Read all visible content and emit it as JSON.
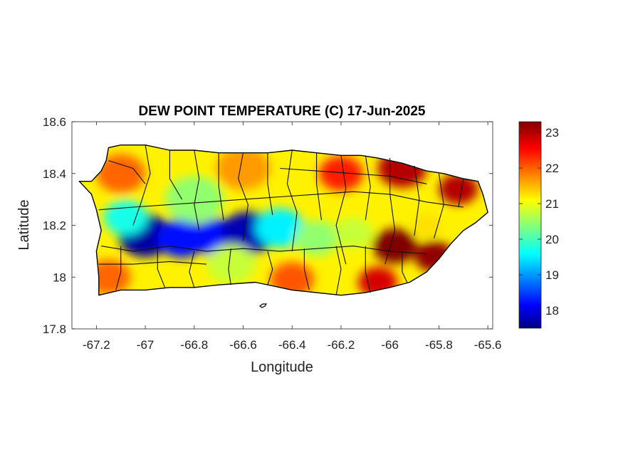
{
  "figure": {
    "title": "DEW POINT TEMPERATURE (C) 17-Jun-2025",
    "xlabel": "Longitude",
    "ylabel": "Latitude"
  },
  "chart_data": {
    "type": "heatmap",
    "title": "DEW POINT TEMPERATURE (C) 17-Jun-2025",
    "xlabel": "Longitude",
    "ylabel": "Latitude",
    "xlim": [
      -67.3,
      -65.58
    ],
    "ylim": [
      17.8,
      18.6
    ],
    "xticks": [
      -67.2,
      -67,
      -66.8,
      -66.6,
      -66.4,
      -66.2,
      -66,
      -65.8,
      -65.6
    ],
    "xtick_labels": [
      "-67.2",
      "-67",
      "-66.8",
      "-66.6",
      "-66.4",
      "-66.2",
      "-66",
      "-65.8",
      "-65.6"
    ],
    "yticks": [
      17.8,
      18,
      18.2,
      18.4,
      18.6
    ],
    "ytick_labels": [
      "17.8",
      "18",
      "18.2",
      "18.4",
      "18.6"
    ],
    "colorbar": {
      "range": [
        17.5,
        23.3
      ],
      "ticks": [
        18,
        19,
        20,
        21,
        22,
        23
      ],
      "tick_labels": [
        "18",
        "19",
        "20",
        "21",
        "22",
        "23"
      ],
      "colormap": "jet"
    },
    "grid": false,
    "island_outline": [
      [
        -67.27,
        18.37
      ],
      [
        -67.22,
        18.37
      ],
      [
        -67.18,
        18.41
      ],
      [
        -67.16,
        18.45
      ],
      [
        -67.15,
        18.5
      ],
      [
        -67.1,
        18.51
      ],
      [
        -67.0,
        18.51
      ],
      [
        -66.9,
        18.49
      ],
      [
        -66.8,
        18.49
      ],
      [
        -66.7,
        18.48
      ],
      [
        -66.6,
        18.48
      ],
      [
        -66.5,
        18.48
      ],
      [
        -66.4,
        18.49
      ],
      [
        -66.3,
        18.48
      ],
      [
        -66.2,
        18.47
      ],
      [
        -66.12,
        18.47
      ],
      [
        -66.05,
        18.46
      ],
      [
        -65.95,
        18.44
      ],
      [
        -65.85,
        18.41
      ],
      [
        -65.78,
        18.4
      ],
      [
        -65.7,
        18.38
      ],
      [
        -65.64,
        18.37
      ],
      [
        -65.62,
        18.32
      ],
      [
        -65.6,
        18.25
      ],
      [
        -65.65,
        18.21
      ],
      [
        -65.7,
        18.18
      ],
      [
        -65.75,
        18.13
      ],
      [
        -65.8,
        18.07
      ],
      [
        -65.85,
        18.02
      ],
      [
        -65.92,
        17.98
      ],
      [
        -66.0,
        17.96
      ],
      [
        -66.1,
        17.94
      ],
      [
        -66.2,
        17.93
      ],
      [
        -66.3,
        17.94
      ],
      [
        -66.4,
        17.95
      ],
      [
        -66.55,
        17.98
      ],
      [
        -66.7,
        17.97
      ],
      [
        -66.8,
        17.96
      ],
      [
        -66.9,
        17.96
      ],
      [
        -67.0,
        17.95
      ],
      [
        -67.1,
        17.95
      ],
      [
        -67.19,
        17.93
      ],
      [
        -67.19,
        18.0
      ],
      [
        -67.2,
        18.1
      ],
      [
        -67.18,
        18.18
      ],
      [
        -67.2,
        18.26
      ],
      [
        -67.22,
        18.32
      ],
      [
        -67.27,
        18.37
      ]
    ],
    "dew_point_field": [
      {
        "lon": -67.0,
        "lat": 18.16,
        "value": 17.7,
        "radius_deg": 0.11
      },
      {
        "lon": -66.85,
        "lat": 18.15,
        "value": 18.3,
        "radius_deg": 0.1
      },
      {
        "lon": -66.7,
        "lat": 18.15,
        "value": 18.3,
        "radius_deg": 0.1
      },
      {
        "lon": -66.58,
        "lat": 18.17,
        "value": 17.8,
        "radius_deg": 0.11
      },
      {
        "lon": -66.45,
        "lat": 18.19,
        "value": 19.6,
        "radius_deg": 0.1
      },
      {
        "lon": -67.08,
        "lat": 18.23,
        "value": 19.8,
        "radius_deg": 0.09
      },
      {
        "lon": -66.8,
        "lat": 18.3,
        "value": 20.5,
        "radius_deg": 0.12
      },
      {
        "lon": -66.65,
        "lat": 18.05,
        "value": 20.8,
        "radius_deg": 0.1
      },
      {
        "lon": -66.3,
        "lat": 18.15,
        "value": 20.5,
        "radius_deg": 0.09
      },
      {
        "lon": -66.15,
        "lat": 18.17,
        "value": 20.8,
        "radius_deg": 0.08
      },
      {
        "lon": -66.6,
        "lat": 18.42,
        "value": 21.7,
        "radius_deg": 0.11
      },
      {
        "lon": -67.1,
        "lat": 18.4,
        "value": 22.0,
        "radius_deg": 0.1
      },
      {
        "lon": -67.15,
        "lat": 18.0,
        "value": 22.0,
        "radius_deg": 0.09
      },
      {
        "lon": -66.4,
        "lat": 17.99,
        "value": 22.1,
        "radius_deg": 0.09
      },
      {
        "lon": -66.2,
        "lat": 18.4,
        "value": 22.4,
        "radius_deg": 0.09
      },
      {
        "lon": -65.95,
        "lat": 18.42,
        "value": 23.0,
        "radius_deg": 0.1
      },
      {
        "lon": -65.72,
        "lat": 18.34,
        "value": 23.0,
        "radius_deg": 0.08
      },
      {
        "lon": -65.85,
        "lat": 18.2,
        "value": 21.3,
        "radius_deg": 0.06
      },
      {
        "lon": -65.98,
        "lat": 18.12,
        "value": 23.3,
        "radius_deg": 0.09
      },
      {
        "lon": -65.82,
        "lat": 18.08,
        "value": 23.2,
        "radius_deg": 0.08
      },
      {
        "lon": -66.05,
        "lat": 17.98,
        "value": 22.8,
        "radius_deg": 0.08
      }
    ],
    "municipal_boundaries": [
      [
        [
          -67.15,
          18.45
        ],
        [
          -67.05,
          18.42
        ],
        [
          -67.0,
          18.36
        ]
      ],
      [
        [
          -67.0,
          18.51
        ],
        [
          -66.98,
          18.4
        ],
        [
          -67.02,
          18.28
        ],
        [
          -67.05,
          18.2
        ]
      ],
      [
        [
          -66.9,
          18.49
        ],
        [
          -66.9,
          18.38
        ],
        [
          -66.85,
          18.3
        ]
      ],
      [
        [
          -66.8,
          18.49
        ],
        [
          -66.78,
          18.38
        ],
        [
          -66.8,
          18.28
        ],
        [
          -66.78,
          18.18
        ]
      ],
      [
        [
          -66.7,
          18.48
        ],
        [
          -66.7,
          18.35
        ],
        [
          -66.68,
          18.22
        ]
      ],
      [
        [
          -66.6,
          18.48
        ],
        [
          -66.62,
          18.38
        ],
        [
          -66.58,
          18.28
        ],
        [
          -66.6,
          18.14
        ]
      ],
      [
        [
          -66.5,
          18.48
        ],
        [
          -66.5,
          18.36
        ],
        [
          -66.48,
          18.24
        ]
      ],
      [
        [
          -66.4,
          18.49
        ],
        [
          -66.42,
          18.36
        ],
        [
          -66.38,
          18.25
        ],
        [
          -66.4,
          18.1
        ]
      ],
      [
        [
          -66.3,
          18.48
        ],
        [
          -66.3,
          18.36
        ],
        [
          -66.28,
          18.22
        ]
      ],
      [
        [
          -66.2,
          18.47
        ],
        [
          -66.18,
          18.34
        ],
        [
          -66.22,
          18.2
        ],
        [
          -66.18,
          18.05
        ]
      ],
      [
        [
          -66.1,
          18.47
        ],
        [
          -66.08,
          18.35
        ],
        [
          -66.1,
          18.22
        ]
      ],
      [
        [
          -66.0,
          18.46
        ],
        [
          -66.0,
          18.32
        ],
        [
          -65.98,
          18.18
        ],
        [
          -66.02,
          18.05
        ]
      ],
      [
        [
          -65.9,
          18.43
        ],
        [
          -65.88,
          18.3
        ],
        [
          -65.9,
          18.16
        ]
      ],
      [
        [
          -65.8,
          18.4
        ],
        [
          -65.78,
          18.28
        ],
        [
          -65.82,
          18.15
        ]
      ],
      [
        [
          -65.7,
          18.38
        ],
        [
          -65.72,
          18.27
        ]
      ],
      [
        [
          -67.19,
          18.26
        ],
        [
          -67.05,
          18.27
        ],
        [
          -66.9,
          18.28
        ],
        [
          -66.75,
          18.29
        ],
        [
          -66.6,
          18.3
        ],
        [
          -66.45,
          18.31
        ],
        [
          -66.3,
          18.32
        ],
        [
          -66.15,
          18.33
        ],
        [
          -66.0,
          18.32
        ],
        [
          -65.85,
          18.29
        ],
        [
          -65.7,
          18.27
        ]
      ],
      [
        [
          -67.18,
          18.12
        ],
        [
          -67.05,
          18.1
        ],
        [
          -66.9,
          18.12
        ],
        [
          -66.75,
          18.1
        ],
        [
          -66.6,
          18.11
        ],
        [
          -66.45,
          18.1
        ],
        [
          -66.3,
          18.11
        ],
        [
          -66.15,
          18.12
        ],
        [
          -66.0,
          18.1
        ],
        [
          -65.85,
          18.09
        ]
      ],
      [
        [
          -67.1,
          18.12
        ],
        [
          -67.1,
          18.02
        ],
        [
          -67.12,
          17.95
        ]
      ],
      [
        [
          -66.95,
          18.12
        ],
        [
          -66.95,
          18.03
        ],
        [
          -66.92,
          17.96
        ]
      ],
      [
        [
          -66.8,
          18.1
        ],
        [
          -66.82,
          18.02
        ],
        [
          -66.8,
          17.96
        ]
      ],
      [
        [
          -66.65,
          18.11
        ],
        [
          -66.66,
          18.03
        ],
        [
          -66.65,
          17.97
        ]
      ],
      [
        [
          -66.5,
          18.1
        ],
        [
          -66.48,
          18.03
        ],
        [
          -66.5,
          17.97
        ]
      ],
      [
        [
          -66.35,
          18.11
        ],
        [
          -66.35,
          18.03
        ],
        [
          -66.33,
          17.95
        ]
      ],
      [
        [
          -66.22,
          18.12
        ],
        [
          -66.2,
          18.03
        ],
        [
          -66.22,
          17.93
        ]
      ],
      [
        [
          -66.1,
          18.12
        ],
        [
          -66.1,
          18.02
        ],
        [
          -66.08,
          17.94
        ]
      ],
      [
        [
          -65.95,
          18.1
        ],
        [
          -65.95,
          18.02
        ],
        [
          -65.93,
          17.98
        ]
      ],
      [
        [
          -67.19,
          18.05
        ],
        [
          -67.05,
          18.05
        ],
        [
          -66.9,
          18.06
        ],
        [
          -66.75,
          18.05
        ]
      ],
      [
        [
          -66.45,
          18.42
        ],
        [
          -66.3,
          18.41
        ],
        [
          -66.15,
          18.4
        ],
        [
          -66.0,
          18.39
        ],
        [
          -65.85,
          18.36
        ]
      ]
    ]
  }
}
